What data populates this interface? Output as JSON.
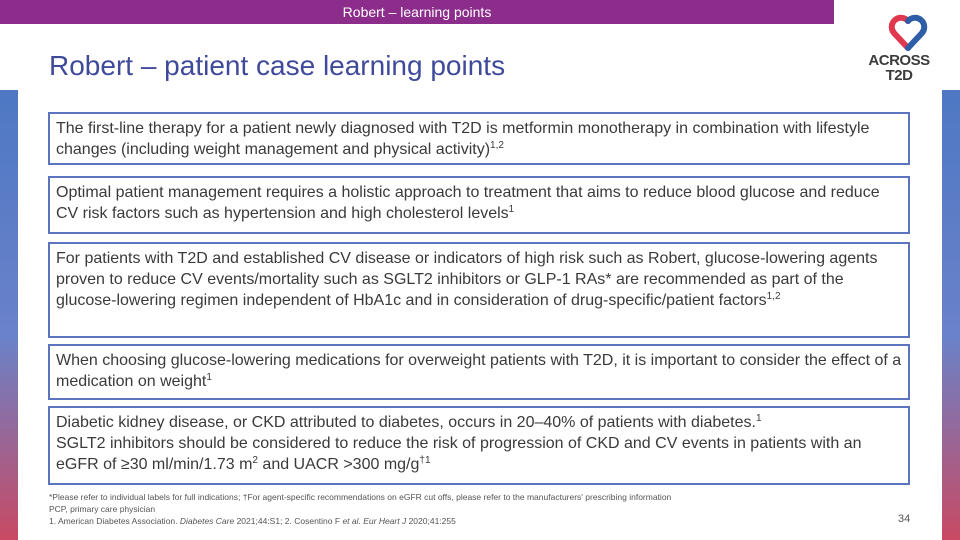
{
  "header": {
    "banner": "Robert – learning points",
    "title": "Robert – patient case learning points"
  },
  "logo": {
    "line1": "ACROSS",
    "line2": "T2D",
    "colors": {
      "red": "#e0394f",
      "blue": "#2f5ea8",
      "text": "#3c3c3c"
    }
  },
  "points": [
    {
      "text": "The first-line therapy for a patient newly diagnosed with T2D is metformin monotherapy in combination with lifestyle changes (including weight management and physical activity)",
      "ref": "1,2"
    },
    {
      "text": "Optimal patient management requires a holistic approach to treatment that aims to reduce blood glucose and reduce CV risk factors such as hypertension and high cholesterol levels",
      "ref": "1"
    },
    {
      "text": "For patients with T2D and established CV disease or indicators of high risk such as Robert, glucose-lowering agents proven to reduce CV events/mortality such as SGLT2 inhibitors or GLP-1 RAs* are recommended as part of the glucose-lowering regimen independent of HbA1c and in consideration of drug-specific/patient factors",
      "ref": "1,2"
    },
    {
      "text": "When choosing glucose-lowering medications for overweight patients with T2D, it is important to consider the effect of a medication on weight",
      "ref": "1"
    },
    {
      "line1": "Diabetic kidney disease, or CKD attributed to diabetes, occurs in 20–40% of patients with diabetes.",
      "line1_ref": "1",
      "line2": "SGLT2 inhibitors should be considered to reduce the risk of progression of CKD and CV events in patients with an eGFR of ≥30 ml/min/1.73 m",
      "exp": "2",
      "line2_tail": " and UACR >300 mg/g",
      "line2_ref": "†1"
    }
  ],
  "footnotes": {
    "line1": "*Please refer to individual labels for full indications; †For agent-specific recommendations on eGFR cut offs, please refer to the manufacturers' prescribing information",
    "line2": "PCP, primary care physician",
    "ref1_a": "1. American Diabetes Association. ",
    "ref1_journal": "Diabetes Care",
    "ref1_b": " 2021;44:S1; 2. Cosentino F ",
    "ref2_etal": "et al. Eur Heart J",
    "ref2_b": " 2020;41:255"
  },
  "page_number": "34",
  "colors": {
    "banner": "#8c2d8c",
    "title": "#3f4a9a",
    "box_border": "#5a74bd"
  }
}
